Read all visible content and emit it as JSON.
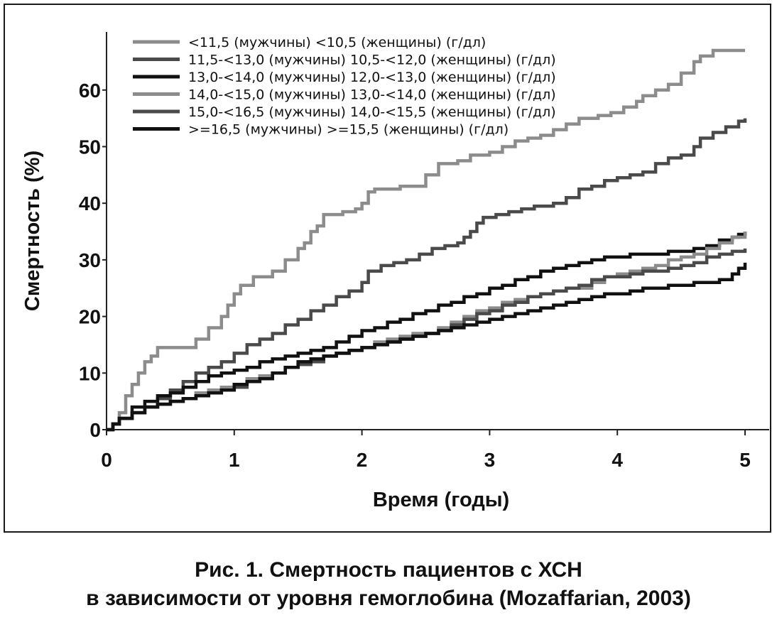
{
  "caption": {
    "line1": "Рис. 1. Смертность пациентов с ХСН",
    "line2": "в зависимости от уровня гемоглобина (Mozaffarian, 2003)"
  },
  "chart_data": {
    "type": "line",
    "title": "",
    "xlabel": "Время (годы)",
    "ylabel": "Смертность (%)",
    "xlim": [
      0,
      5
    ],
    "ylim": [
      0,
      68
    ],
    "x_ticks": [
      0,
      1,
      2,
      3,
      4,
      5
    ],
    "y_ticks": [
      0,
      10,
      20,
      30,
      40,
      50,
      60
    ],
    "grid": false,
    "legend_position": "top-left",
    "series": [
      {
        "name": "<11,5 (мужчины) <10,5 (женщины) (г/дл)",
        "color": "#8c8c8c",
        "points": [
          [
            0,
            0
          ],
          [
            0.05,
            1
          ],
          [
            0.1,
            3
          ],
          [
            0.15,
            6
          ],
          [
            0.2,
            8
          ],
          [
            0.25,
            10
          ],
          [
            0.3,
            12
          ],
          [
            0.35,
            13
          ],
          [
            0.4,
            14.5
          ],
          [
            0.5,
            14.5
          ],
          [
            0.65,
            14.5
          ],
          [
            0.7,
            16
          ],
          [
            0.8,
            18
          ],
          [
            0.9,
            20
          ],
          [
            0.95,
            22
          ],
          [
            1.0,
            24
          ],
          [
            1.05,
            25.5
          ],
          [
            1.15,
            27
          ],
          [
            1.3,
            28
          ],
          [
            1.4,
            30
          ],
          [
            1.5,
            32
          ],
          [
            1.55,
            33
          ],
          [
            1.6,
            35
          ],
          [
            1.65,
            36
          ],
          [
            1.7,
            38
          ],
          [
            1.85,
            38.5
          ],
          [
            1.95,
            39
          ],
          [
            2.0,
            40
          ],
          [
            2.05,
            42
          ],
          [
            2.1,
            42.5
          ],
          [
            2.3,
            43
          ],
          [
            2.45,
            43
          ],
          [
            2.5,
            45
          ],
          [
            2.6,
            47
          ],
          [
            2.75,
            47.5
          ],
          [
            2.85,
            48.5
          ],
          [
            3.0,
            49
          ],
          [
            3.1,
            50
          ],
          [
            3.2,
            51
          ],
          [
            3.3,
            51.5
          ],
          [
            3.4,
            52
          ],
          [
            3.5,
            53
          ],
          [
            3.6,
            54
          ],
          [
            3.7,
            55
          ],
          [
            3.85,
            55.5
          ],
          [
            3.95,
            56
          ],
          [
            4.05,
            57
          ],
          [
            4.15,
            58
          ],
          [
            4.2,
            59
          ],
          [
            4.3,
            60
          ],
          [
            4.4,
            61
          ],
          [
            4.5,
            63
          ],
          [
            4.6,
            65
          ],
          [
            4.65,
            66
          ],
          [
            4.75,
            67
          ],
          [
            5.0,
            67
          ]
        ]
      },
      {
        "name": "11,5-<13,0 (мужчины) 10,5-<12,0 (женщины) (г/дл)",
        "color": "#4a4a4a",
        "points": [
          [
            0,
            0
          ],
          [
            0.05,
            1
          ],
          [
            0.1,
            2
          ],
          [
            0.2,
            3
          ],
          [
            0.3,
            4
          ],
          [
            0.4,
            5.5
          ],
          [
            0.5,
            7
          ],
          [
            0.6,
            8.5
          ],
          [
            0.7,
            10
          ],
          [
            0.8,
            11
          ],
          [
            0.9,
            12
          ],
          [
            1.0,
            13.5
          ],
          [
            1.1,
            15
          ],
          [
            1.2,
            16
          ],
          [
            1.3,
            17
          ],
          [
            1.4,
            18.5
          ],
          [
            1.5,
            19.5
          ],
          [
            1.6,
            21
          ],
          [
            1.7,
            22
          ],
          [
            1.8,
            23.5
          ],
          [
            1.9,
            24.5
          ],
          [
            2.0,
            26
          ],
          [
            2.05,
            28
          ],
          [
            2.15,
            29
          ],
          [
            2.25,
            29.5
          ],
          [
            2.35,
            30
          ],
          [
            2.45,
            31
          ],
          [
            2.55,
            32
          ],
          [
            2.65,
            32.5
          ],
          [
            2.75,
            33
          ],
          [
            2.8,
            34
          ],
          [
            2.85,
            35
          ],
          [
            2.9,
            36.5
          ],
          [
            2.95,
            37.5
          ],
          [
            3.05,
            38
          ],
          [
            3.15,
            38.5
          ],
          [
            3.25,
            39
          ],
          [
            3.35,
            39.5
          ],
          [
            3.5,
            40
          ],
          [
            3.6,
            41
          ],
          [
            3.7,
            42.5
          ],
          [
            3.8,
            43
          ],
          [
            3.9,
            44
          ],
          [
            4.0,
            44.5
          ],
          [
            4.1,
            45
          ],
          [
            4.2,
            45.5
          ],
          [
            4.3,
            47
          ],
          [
            4.4,
            48
          ],
          [
            4.5,
            48.5
          ],
          [
            4.6,
            50
          ],
          [
            4.65,
            51.5
          ],
          [
            4.75,
            52.5
          ],
          [
            4.85,
            53.5
          ],
          [
            4.95,
            54.5
          ],
          [
            5.0,
            55
          ]
        ]
      },
      {
        "name": "13,0-<14,0 (мужчины) 12,0-<13,0 (женщины) (г/дл)",
        "color": "#111111",
        "points": [
          [
            0,
            0
          ],
          [
            0.05,
            1
          ],
          [
            0.1,
            2
          ],
          [
            0.2,
            4
          ],
          [
            0.3,
            5
          ],
          [
            0.4,
            6
          ],
          [
            0.5,
            6.5
          ],
          [
            0.6,
            7.5
          ],
          [
            0.7,
            8.5
          ],
          [
            0.8,
            9.5
          ],
          [
            0.9,
            10
          ],
          [
            1.0,
            10.5
          ],
          [
            1.1,
            11
          ],
          [
            1.2,
            12
          ],
          [
            1.3,
            12.5
          ],
          [
            1.4,
            13
          ],
          [
            1.5,
            13.5
          ],
          [
            1.6,
            14
          ],
          [
            1.7,
            14.5
          ],
          [
            1.8,
            15.5
          ],
          [
            1.9,
            16.5
          ],
          [
            2.0,
            17.5
          ],
          [
            2.1,
            18
          ],
          [
            2.2,
            19
          ],
          [
            2.3,
            19.5
          ],
          [
            2.4,
            20.5
          ],
          [
            2.5,
            21
          ],
          [
            2.6,
            22
          ],
          [
            2.7,
            22.5
          ],
          [
            2.8,
            23.5
          ],
          [
            2.9,
            24
          ],
          [
            3.0,
            25
          ],
          [
            3.1,
            25.5
          ],
          [
            3.2,
            26.5
          ],
          [
            3.3,
            27
          ],
          [
            3.4,
            28
          ],
          [
            3.5,
            28.5
          ],
          [
            3.6,
            29
          ],
          [
            3.7,
            29.5
          ],
          [
            3.8,
            30
          ],
          [
            3.9,
            30.5
          ],
          [
            4.0,
            30.5
          ],
          [
            4.1,
            31
          ],
          [
            4.3,
            31
          ],
          [
            4.4,
            31.5
          ],
          [
            4.5,
            31.5
          ],
          [
            4.6,
            32
          ],
          [
            4.7,
            32.5
          ],
          [
            4.8,
            33.5
          ],
          [
            4.9,
            34
          ],
          [
            4.95,
            34.5
          ],
          [
            5.0,
            35
          ]
        ]
      },
      {
        "name": "14,0-<15,0 (мужчины) 13,0-<14,0 (женщины) (г/дл)",
        "color": "#8c8c8c",
        "points": [
          [
            0,
            0
          ],
          [
            0.05,
            1
          ],
          [
            0.1,
            2
          ],
          [
            0.2,
            3
          ],
          [
            0.3,
            4
          ],
          [
            0.4,
            4.5
          ],
          [
            0.5,
            5
          ],
          [
            0.6,
            5.5
          ],
          [
            0.7,
            6.5
          ],
          [
            0.8,
            7
          ],
          [
            0.9,
            7.5
          ],
          [
            1.0,
            8
          ],
          [
            1.1,
            9
          ],
          [
            1.2,
            9.5
          ],
          [
            1.3,
            10
          ],
          [
            1.4,
            11
          ],
          [
            1.5,
            12
          ],
          [
            1.6,
            12.5
          ],
          [
            1.7,
            13
          ],
          [
            1.8,
            13.5
          ],
          [
            1.9,
            14
          ],
          [
            2.0,
            14.5
          ],
          [
            2.1,
            15.5
          ],
          [
            2.2,
            16
          ],
          [
            2.3,
            16.5
          ],
          [
            2.4,
            17
          ],
          [
            2.5,
            17
          ],
          [
            2.6,
            18
          ],
          [
            2.7,
            19
          ],
          [
            2.8,
            20
          ],
          [
            2.9,
            21
          ],
          [
            3.0,
            21.5
          ],
          [
            3.1,
            22.5
          ],
          [
            3.2,
            23
          ],
          [
            3.3,
            23.5
          ],
          [
            3.4,
            24
          ],
          [
            3.5,
            24.5
          ],
          [
            3.6,
            25
          ],
          [
            3.7,
            25
          ],
          [
            3.8,
            26
          ],
          [
            3.9,
            27
          ],
          [
            4.0,
            27.5
          ],
          [
            4.1,
            28
          ],
          [
            4.2,
            28.5
          ],
          [
            4.3,
            29
          ],
          [
            4.4,
            30
          ],
          [
            4.5,
            30.5
          ],
          [
            4.6,
            31
          ],
          [
            4.7,
            32
          ],
          [
            4.8,
            33
          ],
          [
            4.9,
            34
          ],
          [
            5.0,
            35
          ]
        ]
      },
      {
        "name": "15,0-<16,5 (мужчины) 14,0-<15,5 (женщины) (г/дл)",
        "color": "#4a4a4a",
        "points": [
          [
            0,
            0
          ],
          [
            0.05,
            1
          ],
          [
            0.1,
            2
          ],
          [
            0.2,
            3
          ],
          [
            0.3,
            4
          ],
          [
            0.4,
            4.5
          ],
          [
            0.5,
            5
          ],
          [
            0.6,
            5.5
          ],
          [
            0.7,
            6
          ],
          [
            0.8,
            6.5
          ],
          [
            0.9,
            7
          ],
          [
            1.0,
            7.5
          ],
          [
            1.1,
            8.5
          ],
          [
            1.2,
            9
          ],
          [
            1.3,
            10
          ],
          [
            1.4,
            11
          ],
          [
            1.5,
            11.5
          ],
          [
            1.6,
            12
          ],
          [
            1.7,
            13
          ],
          [
            1.8,
            13.5
          ],
          [
            1.9,
            14
          ],
          [
            2.0,
            14.5
          ],
          [
            2.1,
            15
          ],
          [
            2.2,
            15.5
          ],
          [
            2.3,
            16
          ],
          [
            2.4,
            16.5
          ],
          [
            2.5,
            17
          ],
          [
            2.6,
            17.5
          ],
          [
            2.7,
            18.5
          ],
          [
            2.8,
            19.5
          ],
          [
            2.9,
            20.5
          ],
          [
            3.0,
            21
          ],
          [
            3.1,
            22
          ],
          [
            3.2,
            22.5
          ],
          [
            3.3,
            23.5
          ],
          [
            3.4,
            24
          ],
          [
            3.5,
            24.5
          ],
          [
            3.6,
            25
          ],
          [
            3.7,
            25.5
          ],
          [
            3.8,
            26.5
          ],
          [
            3.9,
            27
          ],
          [
            4.0,
            27
          ],
          [
            4.1,
            27.5
          ],
          [
            4.2,
            28
          ],
          [
            4.3,
            28
          ],
          [
            4.4,
            28.5
          ],
          [
            4.5,
            29
          ],
          [
            4.6,
            29.5
          ],
          [
            4.7,
            30.5
          ],
          [
            4.8,
            31
          ],
          [
            4.9,
            31.5
          ],
          [
            5.0,
            32
          ]
        ]
      },
      {
        "name": ">=16,5 (мужчины) >=15,5 (женщины) (г/дл)",
        "color": "#111111",
        "points": [
          [
            0,
            0
          ],
          [
            0.05,
            1
          ],
          [
            0.1,
            2
          ],
          [
            0.2,
            3
          ],
          [
            0.3,
            4
          ],
          [
            0.4,
            4.5
          ],
          [
            0.5,
            5
          ],
          [
            0.6,
            5.5
          ],
          [
            0.7,
            6
          ],
          [
            0.8,
            6.5
          ],
          [
            0.9,
            7
          ],
          [
            1.0,
            8
          ],
          [
            1.1,
            8.5
          ],
          [
            1.2,
            9
          ],
          [
            1.3,
            10
          ],
          [
            1.4,
            11
          ],
          [
            1.5,
            12
          ],
          [
            1.6,
            12.5
          ],
          [
            1.7,
            13
          ],
          [
            1.8,
            13.5
          ],
          [
            1.9,
            14
          ],
          [
            2.0,
            14.5
          ],
          [
            2.1,
            15
          ],
          [
            2.2,
            15.5
          ],
          [
            2.3,
            16
          ],
          [
            2.4,
            16.5
          ],
          [
            2.5,
            17
          ],
          [
            2.6,
            17.5
          ],
          [
            2.7,
            18
          ],
          [
            2.8,
            18.5
          ],
          [
            2.9,
            19
          ],
          [
            3.0,
            19.5
          ],
          [
            3.1,
            20
          ],
          [
            3.2,
            20.5
          ],
          [
            3.3,
            21
          ],
          [
            3.4,
            21.5
          ],
          [
            3.5,
            22
          ],
          [
            3.6,
            22.5
          ],
          [
            3.7,
            23
          ],
          [
            3.8,
            23.5
          ],
          [
            3.9,
            24
          ],
          [
            4.0,
            24
          ],
          [
            4.1,
            24.5
          ],
          [
            4.2,
            25
          ],
          [
            4.3,
            25
          ],
          [
            4.4,
            25.5
          ],
          [
            4.5,
            25.5
          ],
          [
            4.6,
            26
          ],
          [
            4.7,
            26
          ],
          [
            4.8,
            26.5
          ],
          [
            4.9,
            27.5
          ],
          [
            4.95,
            28.5
          ],
          [
            5.0,
            29.5
          ]
        ]
      }
    ]
  }
}
